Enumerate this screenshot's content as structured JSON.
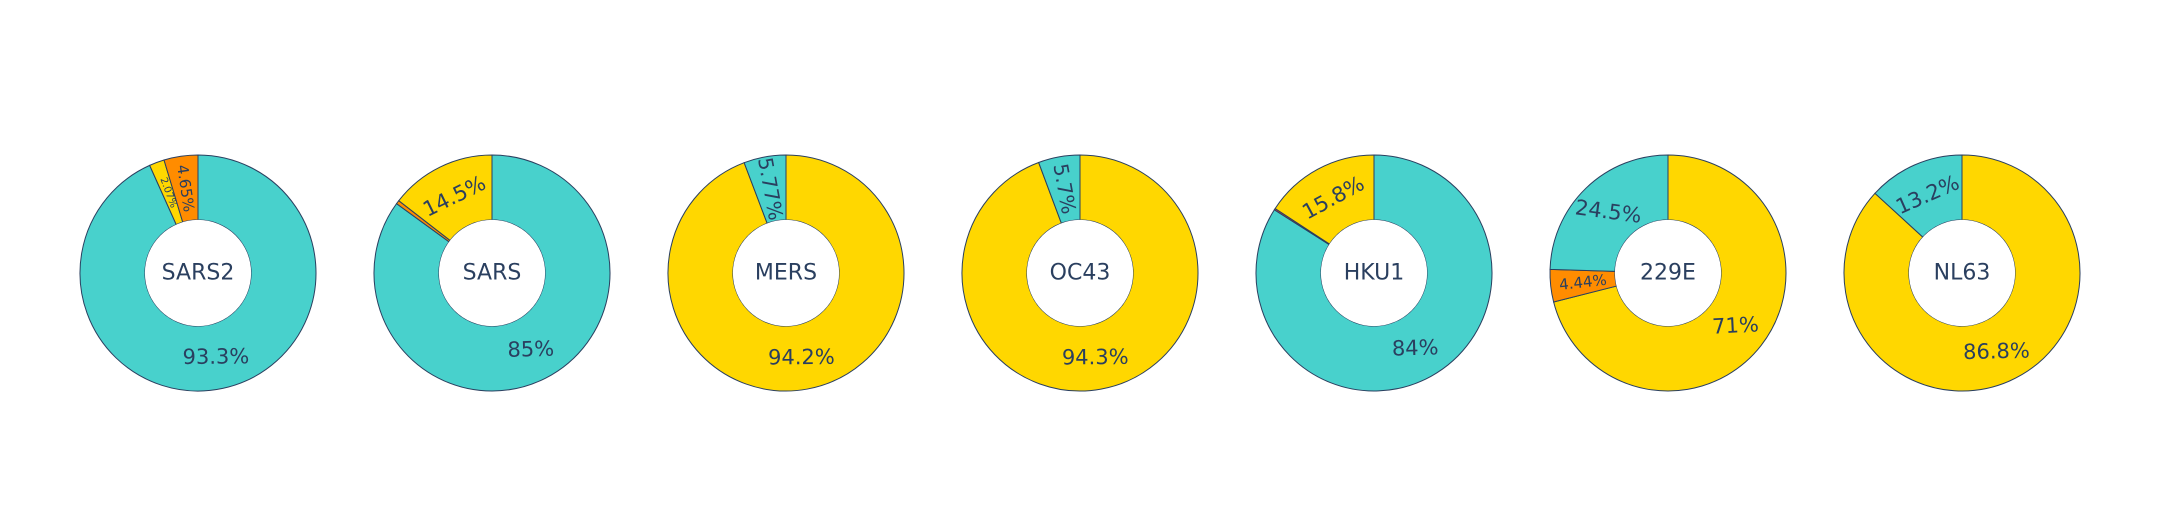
{
  "colors": {
    "turquoise": "#48D1CC",
    "gold": "#FFD700",
    "orange": "#FF8C00",
    "red": "#E8432B",
    "text": "#2a3f5f",
    "outline": "#2a3f5f"
  },
  "chart_data": [
    {
      "type": "pie",
      "hole": 0.45,
      "center_label": "SARS2",
      "slices": [
        {
          "value": 93.3,
          "label": "93.3%",
          "color": "#48D1CC"
        },
        {
          "value": 2.07,
          "label": "2.07%",
          "color": "#FFD700"
        },
        {
          "value": 4.65,
          "label": "4.65%",
          "color": "#FF8C00"
        }
      ]
    },
    {
      "type": "pie",
      "hole": 0.45,
      "center_label": "SARS",
      "slices": [
        {
          "value": 85,
          "label": "85%",
          "color": "#48D1CC"
        },
        {
          "value": 0.5,
          "label": "",
          "color": "#FF8C00"
        },
        {
          "value": 14.5,
          "label": "14.5%",
          "color": "#FFD700"
        }
      ]
    },
    {
      "type": "pie",
      "hole": 0.45,
      "center_label": "MERS",
      "slices": [
        {
          "value": 94.2,
          "label": "94.2%",
          "color": "#FFD700"
        },
        {
          "value": 5.77,
          "label": "5.77%",
          "color": "#48D1CC"
        }
      ]
    },
    {
      "type": "pie",
      "hole": 0.45,
      "center_label": "OC43",
      "slices": [
        {
          "value": 94.3,
          "label": "94.3%",
          "color": "#FFD700"
        },
        {
          "value": 5.7,
          "label": "5.7%",
          "color": "#48D1CC"
        }
      ]
    },
    {
      "type": "pie",
      "hole": 0.45,
      "center_label": "HKU1",
      "slices": [
        {
          "value": 84,
          "label": "84%",
          "color": "#48D1CC"
        },
        {
          "value": 0.2,
          "label": "",
          "color": "#E8432B"
        },
        {
          "value": 15.8,
          "label": "15.8%",
          "color": "#FFD700"
        }
      ]
    },
    {
      "type": "pie",
      "hole": 0.45,
      "center_label": "229E",
      "slices": [
        {
          "value": 71,
          "label": "71%",
          "color": "#FFD700"
        },
        {
          "value": 4.44,
          "label": "4.44%",
          "color": "#FF8C00"
        },
        {
          "value": 24.5,
          "label": "24.5%",
          "color": "#48D1CC"
        }
      ]
    },
    {
      "type": "pie",
      "hole": 0.45,
      "center_label": "NL63",
      "slices": [
        {
          "value": 86.8,
          "label": "86.8%",
          "color": "#FFD700"
        },
        {
          "value": 13.2,
          "label": "13.2%",
          "color": "#48D1CC"
        }
      ]
    }
  ]
}
